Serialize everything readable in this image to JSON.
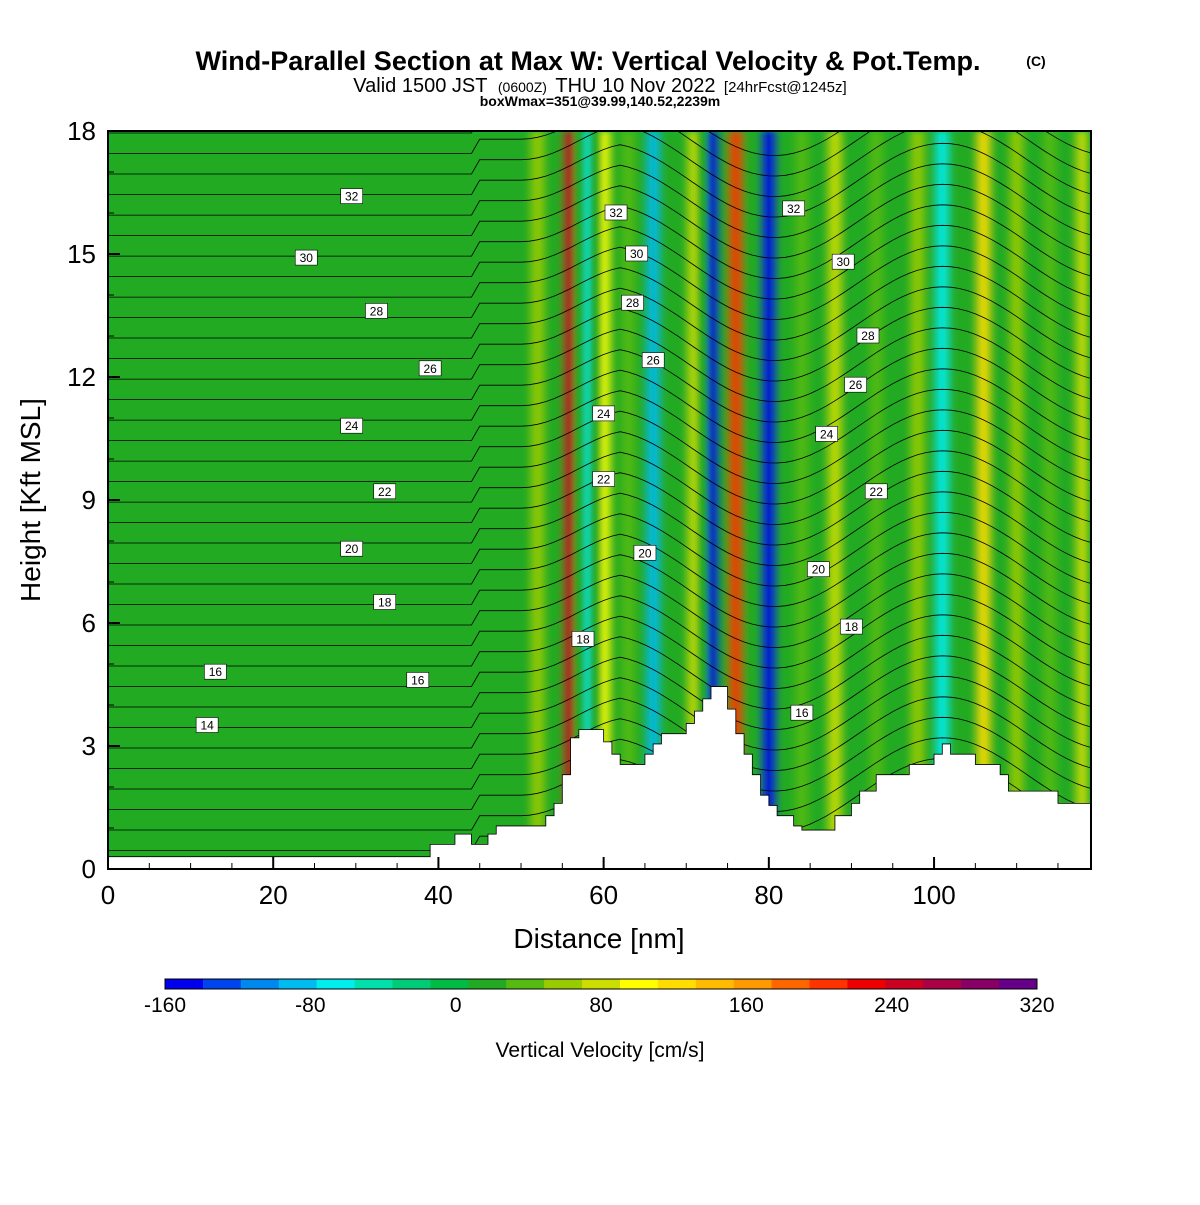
{
  "chart_data": {
    "type": "heatmap",
    "title": "Wind-Parallel Section at Max W: Vertical Velocity & Pot.Temp.",
    "title_mark": "(C)",
    "subtitle_valid": "Valid 1500 JST",
    "subtitle_z": "(0600Z)",
    "subtitle_date": "THU 10 Nov 2022",
    "subtitle_fcst": "[24hrFcst@1245z]",
    "subtitle_box": "boxWmax=351@39.99,140.52,2239m",
    "xlabel": "Distance [nm]",
    "ylabel": "Height [Kft MSL]",
    "xlim": [
      0,
      119
    ],
    "ylim": [
      0,
      18
    ],
    "x_ticks": [
      "0",
      "20",
      "40",
      "60",
      "80",
      "100"
    ],
    "y_ticks": [
      "0",
      "3",
      "6",
      "9",
      "12",
      "15",
      "18"
    ],
    "colorbar": {
      "label": "Vertical Velocity [cm/s]",
      "range": [
        -160,
        320
      ],
      "tick_labels": [
        "-160",
        "-80",
        "0",
        "80",
        "160",
        "240",
        "320"
      ],
      "colors": [
        "#0000ee",
        "#0044ee",
        "#0088ee",
        "#00bbf0",
        "#00eeee",
        "#00e0aa",
        "#00cc77",
        "#00bb44",
        "#22aa22",
        "#55bb11",
        "#99cc00",
        "#ccdd00",
        "#ffff00",
        "#ffdd00",
        "#ffbb00",
        "#ff9900",
        "#ff6600",
        "#ff3300",
        "#ee0000",
        "#cc0022",
        "#aa0044",
        "#880066",
        "#660088"
      ]
    },
    "vertical_velocity_bands": [
      {
        "x": 52,
        "w_max_cm_s": 60
      },
      {
        "x": 56,
        "w_max_cm_s": 240
      },
      {
        "x": 58,
        "w_max_cm_s": -60
      },
      {
        "x": 60,
        "w_max_cm_s": 100
      },
      {
        "x": 63,
        "w_max_cm_s": 40
      },
      {
        "x": 66,
        "w_max_cm_s": -80
      },
      {
        "x": 71,
        "w_max_cm_s": 80
      },
      {
        "x": 73,
        "w_max_cm_s": -140
      },
      {
        "x": 76,
        "w_max_cm_s": 200
      },
      {
        "x": 80,
        "w_max_cm_s": -140
      },
      {
        "x": 84,
        "w_max_cm_s": 40
      },
      {
        "x": 88,
        "w_max_cm_s": 80
      },
      {
        "x": 93,
        "w_max_cm_s": 40
      },
      {
        "x": 98,
        "w_max_cm_s": 50
      },
      {
        "x": 101,
        "w_max_cm_s": -60
      },
      {
        "x": 106,
        "w_max_cm_s": 120
      },
      {
        "x": 110,
        "w_max_cm_s": 60
      },
      {
        "x": 114,
        "w_max_cm_s": 40
      },
      {
        "x": 118,
        "w_max_cm_s": 80
      }
    ],
    "terrain_kft": [
      [
        0,
        0.3
      ],
      [
        9,
        0.3
      ],
      [
        13,
        0.3
      ],
      [
        39,
        0.3
      ],
      [
        39,
        0.6
      ],
      [
        40,
        0.6
      ],
      [
        40,
        0.6
      ],
      [
        42,
        0.6
      ],
      [
        42,
        0.85
      ],
      [
        44,
        0.85
      ],
      [
        44,
        0.6
      ],
      [
        46,
        0.6
      ],
      [
        46,
        0.85
      ],
      [
        47,
        0.85
      ],
      [
        47,
        1.05
      ],
      [
        50,
        1.05
      ],
      [
        53,
        1.05
      ],
      [
        53,
        1.3
      ],
      [
        54,
        1.3
      ],
      [
        54,
        1.6
      ],
      [
        55,
        1.6
      ],
      [
        55,
        2.3
      ],
      [
        56,
        2.3
      ],
      [
        56,
        3.2
      ],
      [
        57,
        3.2
      ],
      [
        57,
        3.4
      ],
      [
        60,
        3.4
      ],
      [
        60,
        3.1
      ],
      [
        61,
        3.1
      ],
      [
        61,
        2.8
      ],
      [
        62,
        2.8
      ],
      [
        62,
        2.55
      ],
      [
        65,
        2.55
      ],
      [
        65,
        2.8
      ],
      [
        66,
        2.8
      ],
      [
        66,
        3.05
      ],
      [
        67,
        3.05
      ],
      [
        67,
        3.3
      ],
      [
        70,
        3.3
      ],
      [
        70,
        3.55
      ],
      [
        71,
        3.55
      ],
      [
        71,
        3.85
      ],
      [
        72,
        3.85
      ],
      [
        72,
        4.15
      ],
      [
        73,
        4.15
      ],
      [
        73,
        4.45
      ],
      [
        75,
        4.45
      ],
      [
        75,
        3.9
      ],
      [
        76,
        3.9
      ],
      [
        76,
        3.3
      ],
      [
        77,
        3.3
      ],
      [
        77,
        2.8
      ],
      [
        78,
        2.8
      ],
      [
        78,
        2.3
      ],
      [
        79,
        2.3
      ],
      [
        79,
        1.8
      ],
      [
        80,
        1.8
      ],
      [
        80,
        1.55
      ],
      [
        81,
        1.55
      ],
      [
        81,
        1.3
      ],
      [
        83,
        1.3
      ],
      [
        83,
        1.05
      ],
      [
        84,
        1.05
      ],
      [
        84,
        0.95
      ],
      [
        88,
        0.95
      ],
      [
        88,
        1.3
      ],
      [
        90,
        1.3
      ],
      [
        90,
        1.6
      ],
      [
        91,
        1.6
      ],
      [
        91,
        1.9
      ],
      [
        93,
        1.9
      ],
      [
        93,
        2.3
      ],
      [
        97,
        2.3
      ],
      [
        97,
        2.55
      ],
      [
        100,
        2.55
      ],
      [
        100,
        2.8
      ],
      [
        101,
        2.8
      ],
      [
        101,
        3.05
      ],
      [
        102,
        3.05
      ],
      [
        102,
        2.8
      ],
      [
        105,
        2.8
      ],
      [
        105,
        2.55
      ],
      [
        108,
        2.55
      ],
      [
        108,
        2.3
      ],
      [
        109,
        2.3
      ],
      [
        109,
        1.9
      ],
      [
        115,
        1.9
      ],
      [
        115,
        1.6
      ],
      [
        119,
        1.6
      ]
    ],
    "isentrope_labels": [
      {
        "text": "32",
        "x": 29.5,
        "y": 16.4
      },
      {
        "text": "30",
        "x": 24.0,
        "y": 14.9
      },
      {
        "text": "28",
        "x": 32.5,
        "y": 13.6
      },
      {
        "text": "26",
        "x": 39.0,
        "y": 12.2
      },
      {
        "text": "24",
        "x": 29.5,
        "y": 10.8
      },
      {
        "text": "22",
        "x": 33.5,
        "y": 9.2
      },
      {
        "text": "20",
        "x": 29.5,
        "y": 7.8
      },
      {
        "text": "18",
        "x": 33.5,
        "y": 6.5
      },
      {
        "text": "16",
        "x": 13.0,
        "y": 4.8
      },
      {
        "text": "16",
        "x": 37.5,
        "y": 4.6
      },
      {
        "text": "14",
        "x": 12.0,
        "y": 3.5
      },
      {
        "text": "32",
        "x": 61.5,
        "y": 16.0
      },
      {
        "text": "30",
        "x": 64.0,
        "y": 15.0
      },
      {
        "text": "28",
        "x": 63.5,
        "y": 13.8
      },
      {
        "text": "26",
        "x": 66.0,
        "y": 12.4
      },
      {
        "text": "24",
        "x": 60.0,
        "y": 11.1
      },
      {
        "text": "22",
        "x": 60.0,
        "y": 9.5
      },
      {
        "text": "20",
        "x": 65.0,
        "y": 7.7
      },
      {
        "text": "18",
        "x": 57.5,
        "y": 5.6
      },
      {
        "text": "32",
        "x": 83.0,
        "y": 16.1
      },
      {
        "text": "30",
        "x": 89.0,
        "y": 14.8
      },
      {
        "text": "28",
        "x": 92.0,
        "y": 13.0
      },
      {
        "text": "26",
        "x": 90.5,
        "y": 11.8
      },
      {
        "text": "24",
        "x": 87.0,
        "y": 10.6
      },
      {
        "text": "22",
        "x": 93.0,
        "y": 9.2
      },
      {
        "text": "20",
        "x": 86.0,
        "y": 7.3
      },
      {
        "text": "18",
        "x": 90.0,
        "y": 5.9
      },
      {
        "text": "16",
        "x": 84.0,
        "y": 3.8
      }
    ]
  }
}
